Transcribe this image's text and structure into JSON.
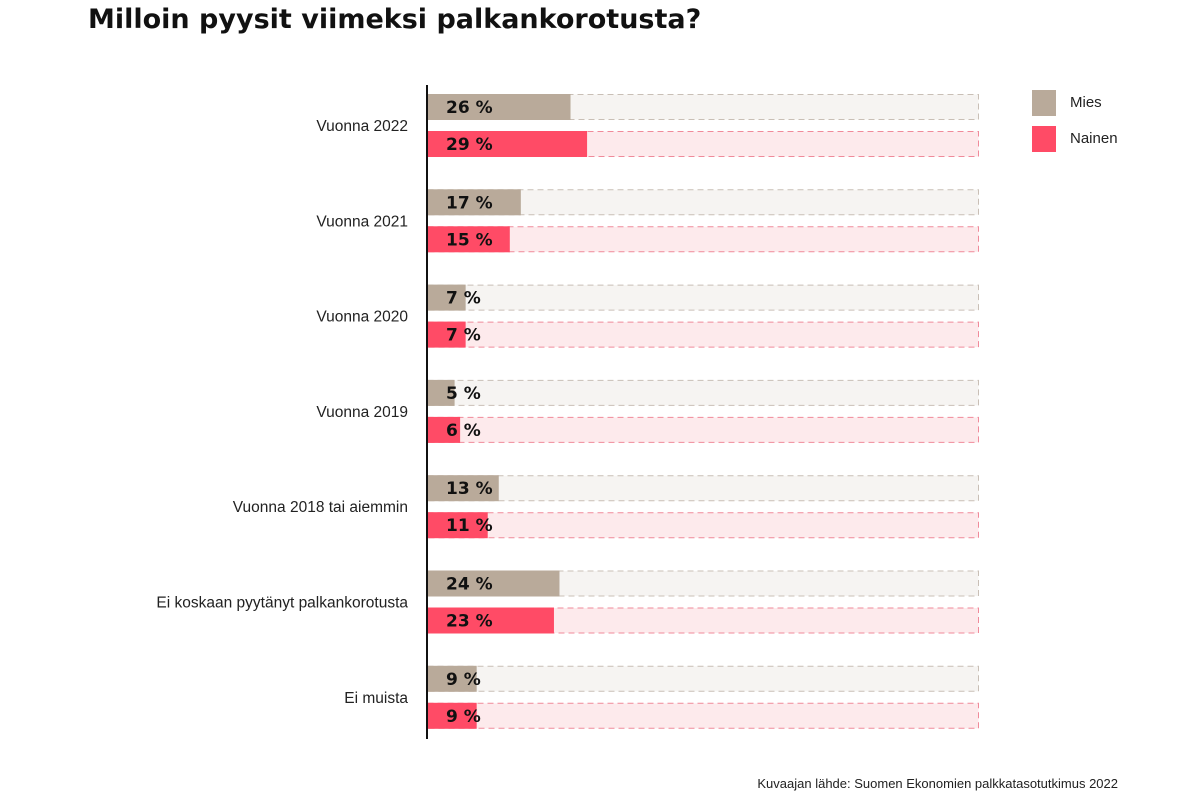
{
  "chart_data": {
    "type": "bar",
    "orientation": "horizontal",
    "title": "Milloin pyysit viimeksi palkankorotusta?",
    "categories": [
      "Vuonna 2022",
      "Vuonna 2021",
      "Vuonna 2020",
      "Vuonna 2019",
      "Vuonna 2018 tai aiemmin",
      "Ei koskaan pyytänyt palkankorotusta",
      "Ei muista"
    ],
    "series": [
      {
        "name": "Mies",
        "values": [
          26,
          17,
          7,
          5,
          13,
          24,
          9
        ],
        "color": "#b9aa9a",
        "track_color": "#f6f4f2",
        "track_border": "#c9bfb6"
      },
      {
        "name": "Nainen",
        "values": [
          29,
          15,
          7,
          6,
          11,
          23,
          9
        ],
        "color": "#ff4b66",
        "track_color": "#fdeaec",
        "track_border": "#f08a9a"
      }
    ],
    "value_suffix": " %",
    "xlim": [
      0,
      100
    ],
    "xlabel": "",
    "ylabel": "",
    "grid": false,
    "legend": "top-right"
  },
  "source": "Kuvaajan lähde: Suomen Ekonomien palkkatasotutkimus 2022"
}
